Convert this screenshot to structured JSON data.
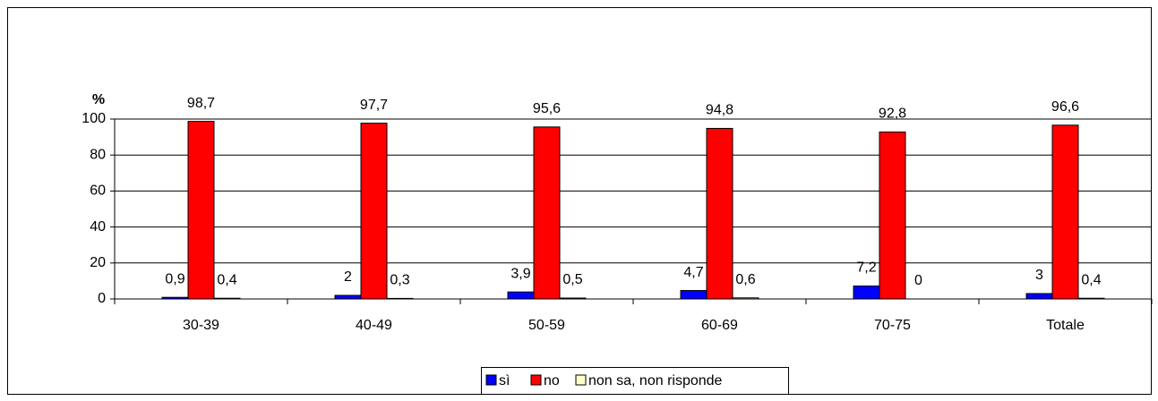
{
  "chart_data": {
    "type": "bar",
    "y_label": "%",
    "categories": [
      "30-39",
      "40-49",
      "50-59",
      "60-69",
      "70-75",
      "Totale"
    ],
    "series": [
      {
        "name": "sì",
        "color": "#0000ff",
        "values": [
          0.9,
          2,
          3.9,
          4.7,
          7.2,
          3
        ],
        "value_labels": [
          "0,9",
          "2",
          "3,9",
          "4,7",
          "7,2",
          "3"
        ]
      },
      {
        "name": "no",
        "color": "#ff0000",
        "values": [
          98.7,
          97.7,
          95.6,
          94.8,
          92.8,
          96.6
        ],
        "value_labels": [
          "98,7",
          "97,7",
          "95,6",
          "94,8",
          "92,8",
          "96,6"
        ]
      },
      {
        "name": "non sa, non risponde",
        "color": "#ffffcc",
        "values": [
          0.4,
          0.3,
          0.5,
          0.6,
          0,
          0.4
        ],
        "value_labels": [
          "0,4",
          "0,3",
          "0,5",
          "0,6",
          "0",
          "0,4"
        ]
      }
    ],
    "ylim": [
      0,
      100
    ],
    "yticks": [
      0,
      20,
      40,
      60,
      80,
      100
    ],
    "grid": true,
    "legend": "bottom"
  }
}
